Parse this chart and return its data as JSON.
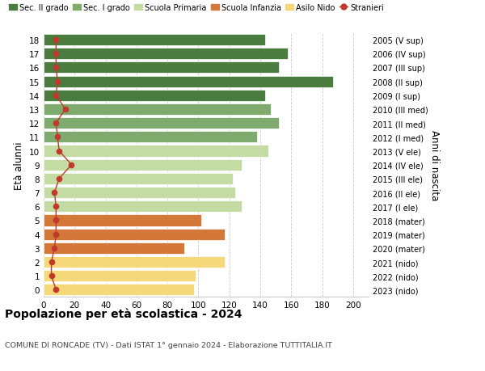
{
  "ages": [
    18,
    17,
    16,
    15,
    14,
    13,
    12,
    11,
    10,
    9,
    8,
    7,
    6,
    5,
    4,
    3,
    2,
    1,
    0
  ],
  "values": [
    143,
    158,
    152,
    187,
    143,
    147,
    152,
    138,
    145,
    128,
    122,
    124,
    128,
    102,
    117,
    91,
    117,
    98,
    97
  ],
  "stranieri": [
    8,
    8,
    8,
    9,
    8,
    14,
    8,
    9,
    10,
    18,
    10,
    7,
    8,
    8,
    8,
    7,
    5,
    5,
    8
  ],
  "right_labels": [
    "2005 (V sup)",
    "2006 (IV sup)",
    "2007 (III sup)",
    "2008 (II sup)",
    "2009 (I sup)",
    "2010 (III med)",
    "2011 (II med)",
    "2012 (I med)",
    "2013 (V ele)",
    "2014 (IV ele)",
    "2015 (III ele)",
    "2016 (II ele)",
    "2017 (I ele)",
    "2018 (mater)",
    "2019 (mater)",
    "2020 (mater)",
    "2021 (nido)",
    "2022 (nido)",
    "2023 (nido)"
  ],
  "colors": {
    "sec2": "#4a7c3f",
    "sec1": "#7faa6d",
    "primaria": "#c5dba4",
    "infanzia": "#d4783a",
    "nido": "#f5d87a"
  },
  "bar_colors": [
    "#4a7c3f",
    "#4a7c3f",
    "#4a7c3f",
    "#4a7c3f",
    "#4a7c3f",
    "#7faa6d",
    "#7faa6d",
    "#7faa6d",
    "#c5dba4",
    "#c5dba4",
    "#c5dba4",
    "#c5dba4",
    "#c5dba4",
    "#d4783a",
    "#d4783a",
    "#d4783a",
    "#f5d87a",
    "#f5d87a",
    "#f5d87a"
  ],
  "title": "Popolazione per età scolastica - 2024",
  "subtitle": "COMUNE DI RONCADE (TV) - Dati ISTAT 1° gennaio 2024 - Elaborazione TUTTITALIA.IT",
  "ylabel_left": "Età alunni",
  "ylabel_right": "Anni di nascita",
  "xlim": [
    0,
    210
  ],
  "xticks": [
    0,
    20,
    40,
    60,
    80,
    100,
    120,
    140,
    160,
    180,
    200
  ],
  "stranieri_color": "#c0392b",
  "grid_color": "#cccccc"
}
